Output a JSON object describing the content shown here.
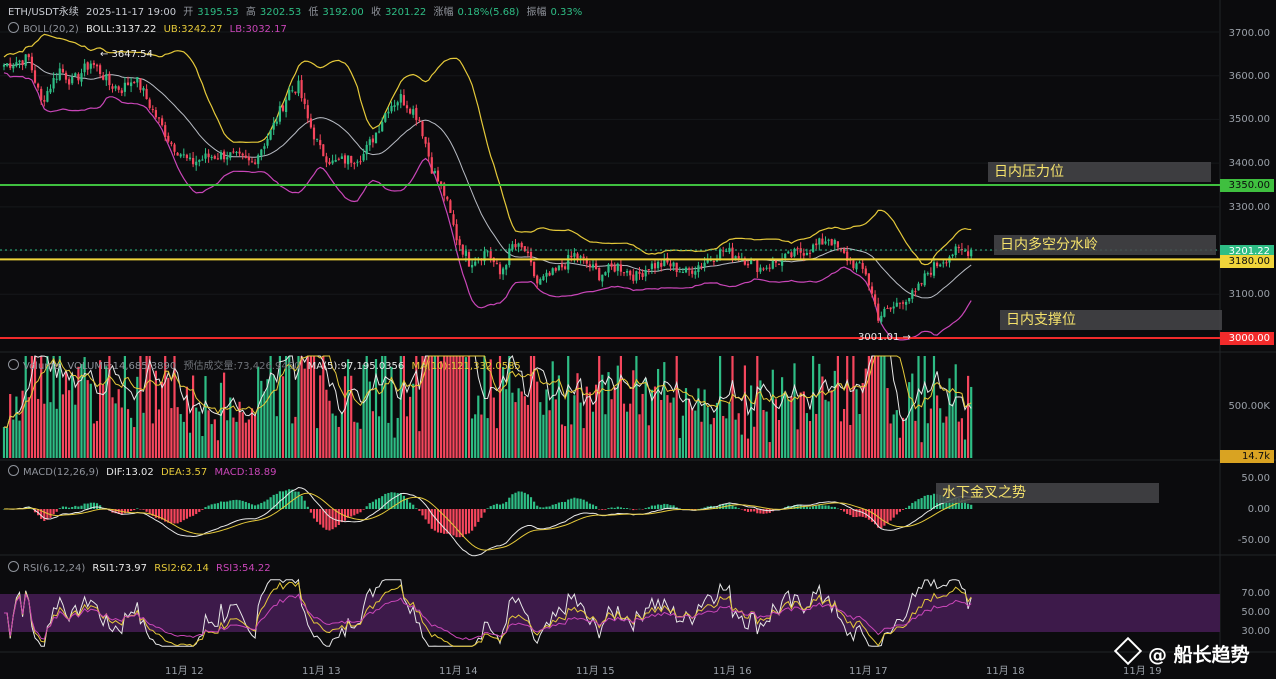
{
  "header": {
    "symbol": "ETH/USDT永续",
    "time": "2025-11-17 19:00",
    "open_label": "开",
    "open": "3195.53",
    "high_label": "高",
    "high": "3202.53",
    "low_label": "低",
    "low": "3192.00",
    "close_label": "收",
    "close": "3201.22",
    "change_label": "涨幅",
    "change": "0.18%(5.68)",
    "amp_label": "振幅",
    "amp": "0.33%"
  },
  "boll": {
    "label": "BOLL(20,2)",
    "mid": "BOLL:3137.22",
    "ub": "UB:3242.27",
    "lb": "LB:3032.17"
  },
  "volume": {
    "label": "Volume",
    "value": "VOLUME:14,685.3890",
    "est": "预估成交量:73,426.9450",
    "ma5": "MA(5):97,195.0356",
    "ma10": "MA(10):121,332.0585"
  },
  "macd": {
    "label": "MACD(12,26,9)",
    "dif": "DIF:13.02",
    "dea": "DEA:3.57",
    "macd": "MACD:18.89"
  },
  "rsi": {
    "label": "RSI(6,12,24)",
    "rsi1": "RSI1:73.97",
    "rsi2": "RSI2:62.14",
    "rsi3": "RSI3:54.22"
  },
  "annotations": {
    "resistance": "日内压力位",
    "pivot": "日内多空分水岭",
    "support": "日内支撑位",
    "macd_note": "水下金叉之势",
    "high_marker": "← 3647.54",
    "low_marker": "3001.01 →"
  },
  "price_tags": {
    "resistance": "3350.00",
    "current": "3201.22",
    "pivot": "3180.00",
    "support": "3000.00",
    "volume": "14.7k"
  },
  "colors": {
    "up": "#2ebd85",
    "down": "#f6465d",
    "resistance": "#3fbf3f",
    "pivot": "#f0d43a",
    "support": "#f22b2b",
    "boll_upper": "#e5c93a",
    "boll_mid": "#b8bcc4",
    "boll_lower": "#c946b8",
    "rsi_band": "#3d1a4a"
  },
  "watermark": "@ 船长趋势",
  "chart_data": {
    "type": "candlestick",
    "x_ticks": [
      "11月 12",
      "11月 13",
      "11月 14",
      "11月 15",
      "11月 16",
      "11月 17",
      "11月 18",
      "11月 19"
    ],
    "price_axis": {
      "ticks": [
        "3700.00",
        "3600.00",
        "3500.00",
        "3400.00",
        "3300.00",
        "3200.00",
        "3100.00",
        "3000.00"
      ],
      "range": [
        2980,
        3735
      ]
    },
    "volume_axis": {
      "ticks": [
        "500.00K"
      ]
    },
    "macd_axis": {
      "ticks": [
        "50.00",
        "0.00",
        "-50.00"
      ]
    },
    "rsi_axis": {
      "ticks": [
        "70.00",
        "50.00",
        "30.00"
      ],
      "band": [
        30,
        70
      ]
    },
    "levels": [
      {
        "name": "resistance",
        "value": 3350
      },
      {
        "name": "pivot",
        "value": 3180
      },
      {
        "name": "support",
        "value": 3000
      }
    ],
    "price_anchors": [
      [
        0,
        3625
      ],
      [
        8,
        3640
      ],
      [
        12,
        3540
      ],
      [
        18,
        3615
      ],
      [
        22,
        3585
      ],
      [
        28,
        3630
      ],
      [
        31,
        3610
      ],
      [
        34,
        3580
      ],
      [
        38,
        3570
      ],
      [
        42,
        3595
      ],
      [
        44,
        3575
      ],
      [
        48,
        3520
      ],
      [
        54,
        3445
      ],
      [
        60,
        3400
      ],
      [
        66,
        3415
      ],
      [
        72,
        3420
      ],
      [
        80,
        3400
      ],
      [
        86,
        3470
      ],
      [
        92,
        3565
      ],
      [
        95,
        3575
      ],
      [
        98,
        3500
      ],
      [
        102,
        3430
      ],
      [
        106,
        3400
      ],
      [
        112,
        3410
      ],
      [
        116,
        3420
      ],
      [
        120,
        3470
      ],
      [
        124,
        3530
      ],
      [
        128,
        3550
      ],
      [
        132,
        3520
      ],
      [
        134,
        3500
      ],
      [
        138,
        3390
      ],
      [
        142,
        3330
      ],
      [
        146,
        3230
      ],
      [
        150,
        3175
      ],
      [
        156,
        3200
      ],
      [
        160,
        3145
      ],
      [
        164,
        3210
      ],
      [
        168,
        3200
      ],
      [
        172,
        3125
      ],
      [
        178,
        3150
      ],
      [
        184,
        3190
      ],
      [
        188,
        3170
      ],
      [
        192,
        3145
      ],
      [
        198,
        3165
      ],
      [
        204,
        3140
      ],
      [
        208,
        3165
      ],
      [
        214,
        3170
      ],
      [
        220,
        3150
      ],
      [
        226,
        3175
      ],
      [
        232,
        3200
      ],
      [
        238,
        3185
      ],
      [
        244,
        3160
      ],
      [
        250,
        3175
      ],
      [
        256,
        3195
      ],
      [
        262,
        3210
      ],
      [
        266,
        3230
      ],
      [
        270,
        3195
      ],
      [
        274,
        3170
      ],
      [
        278,
        3150
      ],
      [
        282,
        3050
      ],
      [
        286,
        3065
      ],
      [
        290,
        3090
      ],
      [
        294,
        3100
      ],
      [
        298,
        3150
      ],
      [
        302,
        3175
      ],
      [
        306,
        3195
      ],
      [
        312,
        3201.22
      ]
    ],
    "high": 3647.54,
    "low": 3001.01,
    "last_close": 3201.22,
    "candle_count": 313
  }
}
